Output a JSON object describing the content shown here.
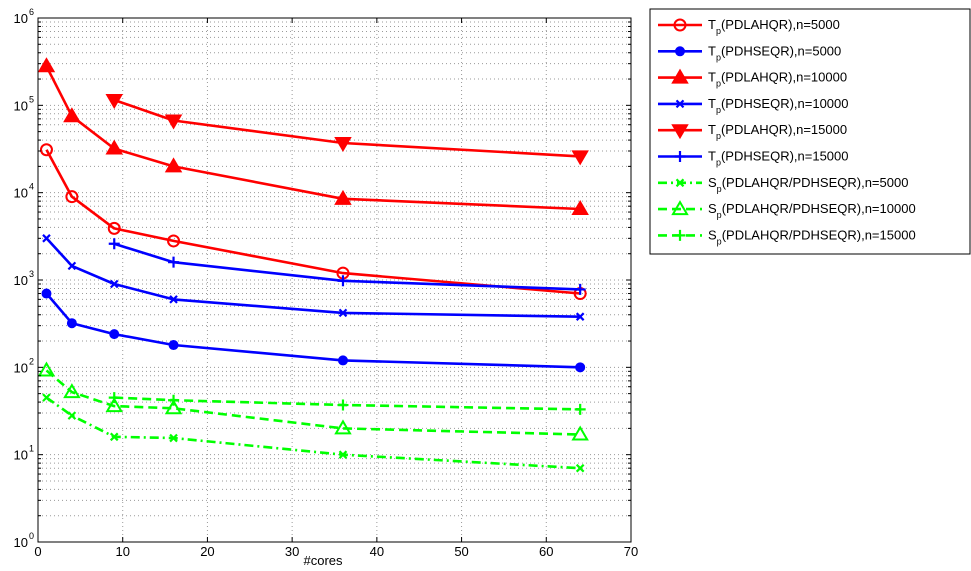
{
  "chart_data": {
    "type": "line",
    "title": "",
    "xlabel": "#cores",
    "ylabel": "",
    "xlim": [
      0,
      70
    ],
    "ylim": [
      1,
      1000000
    ],
    "yscale": "log",
    "xticks": [
      0,
      10,
      20,
      30,
      40,
      50,
      60,
      70
    ],
    "yticks": [
      1,
      10,
      100,
      1000,
      10000,
      100000,
      1000000
    ],
    "ytick_labels": [
      {
        "base": "10",
        "exp": "0"
      },
      {
        "base": "10",
        "exp": "1"
      },
      {
        "base": "10",
        "exp": "2"
      },
      {
        "base": "10",
        "exp": "3"
      },
      {
        "base": "10",
        "exp": "4"
      },
      {
        "base": "10",
        "exp": "5"
      },
      {
        "base": "10",
        "exp": "6"
      }
    ],
    "grid": true,
    "legend_position": "outside-right",
    "series": [
      {
        "name": "Tp(PDLAHQR),n=5000",
        "label_main": "T",
        "label_sub": "p",
        "label_rest": "(PDLAHQR),n=5000",
        "color": "#ff0000",
        "marker": "circle",
        "dash": "solid",
        "x": [
          1,
          4,
          9,
          16,
          36,
          64
        ],
        "y": [
          31000,
          9000,
          3900,
          2800,
          1200,
          700
        ]
      },
      {
        "name": "Tp(PDHSEQR),n=5000",
        "label_main": "T",
        "label_sub": "p",
        "label_rest": "(PDHSEQR),n=5000",
        "color": "#0000ff",
        "marker": "dot",
        "dash": "solid",
        "x": [
          1,
          4,
          9,
          16,
          36,
          64
        ],
        "y": [
          700,
          320,
          240,
          180,
          120,
          100
        ]
      },
      {
        "name": "Tp(PDLAHQR),n=10000",
        "label_main": "T",
        "label_sub": "p",
        "label_rest": "(PDLAHQR),n=10000",
        "color": "#ff0000",
        "marker": "triangle-up",
        "dash": "solid",
        "x": [
          1,
          4,
          9,
          16,
          36,
          64
        ],
        "y": [
          280000,
          75000,
          32000,
          20000,
          8500,
          6500
        ]
      },
      {
        "name": "Tp(PDHSEQR),n=10000",
        "label_main": "T",
        "label_sub": "p",
        "label_rest": "(PDHSEQR),n=10000",
        "color": "#0000ff",
        "marker": "x",
        "dash": "solid",
        "x": [
          1,
          4,
          9,
          16,
          36,
          64
        ],
        "y": [
          3000,
          1450,
          900,
          600,
          420,
          380
        ]
      },
      {
        "name": "Tp(PDLAHQR),n=15000",
        "label_main": "T",
        "label_sub": "p",
        "label_rest": "(PDLAHQR),n=15000",
        "color": "#ff0000",
        "marker": "triangle-down",
        "dash": "solid",
        "x": [
          9,
          16,
          36,
          64
        ],
        "y": [
          115000,
          67000,
          37000,
          26000
        ]
      },
      {
        "name": "Tp(PDHSEQR),n=15000",
        "label_main": "T",
        "label_sub": "p",
        "label_rest": "(PDHSEQR),n=15000",
        "color": "#0000ff",
        "marker": "plus",
        "dash": "solid",
        "x": [
          9,
          16,
          36,
          64
        ],
        "y": [
          2600,
          1600,
          980,
          780
        ]
      },
      {
        "name": "Sp(PDLAHQR/PDHSEQR),n=5000",
        "label_main": "S",
        "label_sub": "p",
        "label_rest": "(PDLAHQR/PDHSEQR),n=5000",
        "color": "#00ff00",
        "marker": "x",
        "dash": "dashdot",
        "x": [
          1,
          4,
          9,
          16,
          36,
          64
        ],
        "y": [
          45,
          28,
          16,
          15.5,
          10,
          7
        ]
      },
      {
        "name": "Sp(PDLAHQR/PDHSEQR),n=10000",
        "label_main": "S",
        "label_sub": "p",
        "label_rest": "(PDLAHQR/PDHSEQR),n=10000",
        "color": "#00ff00",
        "marker": "triangle-up",
        "dash": "dashed",
        "x": [
          1,
          4,
          9,
          16,
          36,
          64
        ],
        "y": [
          92,
          52,
          36,
          34,
          20,
          17
        ]
      },
      {
        "name": "Sp(PDLAHQR/PDHSEQR),n=15000",
        "label_main": "S",
        "label_sub": "p",
        "label_rest": "(PDLAHQR/PDHSEQR),n=15000",
        "color": "#00ff00",
        "marker": "plus",
        "dash": "dashed",
        "x": [
          9,
          16,
          36,
          64
        ],
        "y": [
          45,
          42,
          37,
          33
        ]
      }
    ]
  }
}
